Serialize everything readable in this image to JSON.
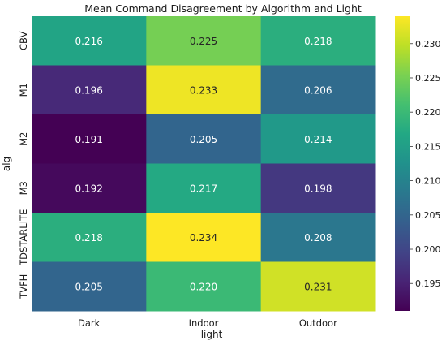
{
  "chart_data": {
    "type": "heatmap",
    "title": "Mean Command Disagreement by Algorithm and Light",
    "xlabel": "light",
    "ylabel": "alg",
    "x_categories": [
      "Dark",
      "Indoor",
      "Outdoor"
    ],
    "y_categories": [
      "CBV",
      "M1",
      "M2",
      "M3",
      "TDSTARLITE",
      "TVFH"
    ],
    "values": [
      [
        0.216,
        0.225,
        0.218
      ],
      [
        0.196,
        0.233,
        0.206
      ],
      [
        0.191,
        0.205,
        0.214
      ],
      [
        0.192,
        0.217,
        0.198
      ],
      [
        0.218,
        0.234,
        0.208
      ],
      [
        0.205,
        0.22,
        0.231
      ]
    ],
    "value_labels": [
      [
        "0.216",
        "0.225",
        "0.218"
      ],
      [
        "0.196",
        "0.233",
        "0.206"
      ],
      [
        "0.191",
        "0.205",
        "0.214"
      ],
      [
        "0.192",
        "0.217",
        "0.198"
      ],
      [
        "0.218",
        "0.234",
        "0.208"
      ],
      [
        "0.205",
        "0.220",
        "0.231"
      ]
    ],
    "colorbar": {
      "colormap": "viridis",
      "range": [
        0.191,
        0.234
      ],
      "ticks": [
        0.195,
        0.2,
        0.205,
        0.21,
        0.215,
        0.22,
        0.225,
        0.23
      ],
      "tick_labels": [
        "0.195",
        "0.200",
        "0.205",
        "0.210",
        "0.215",
        "0.220",
        "0.225",
        "0.230"
      ]
    }
  }
}
